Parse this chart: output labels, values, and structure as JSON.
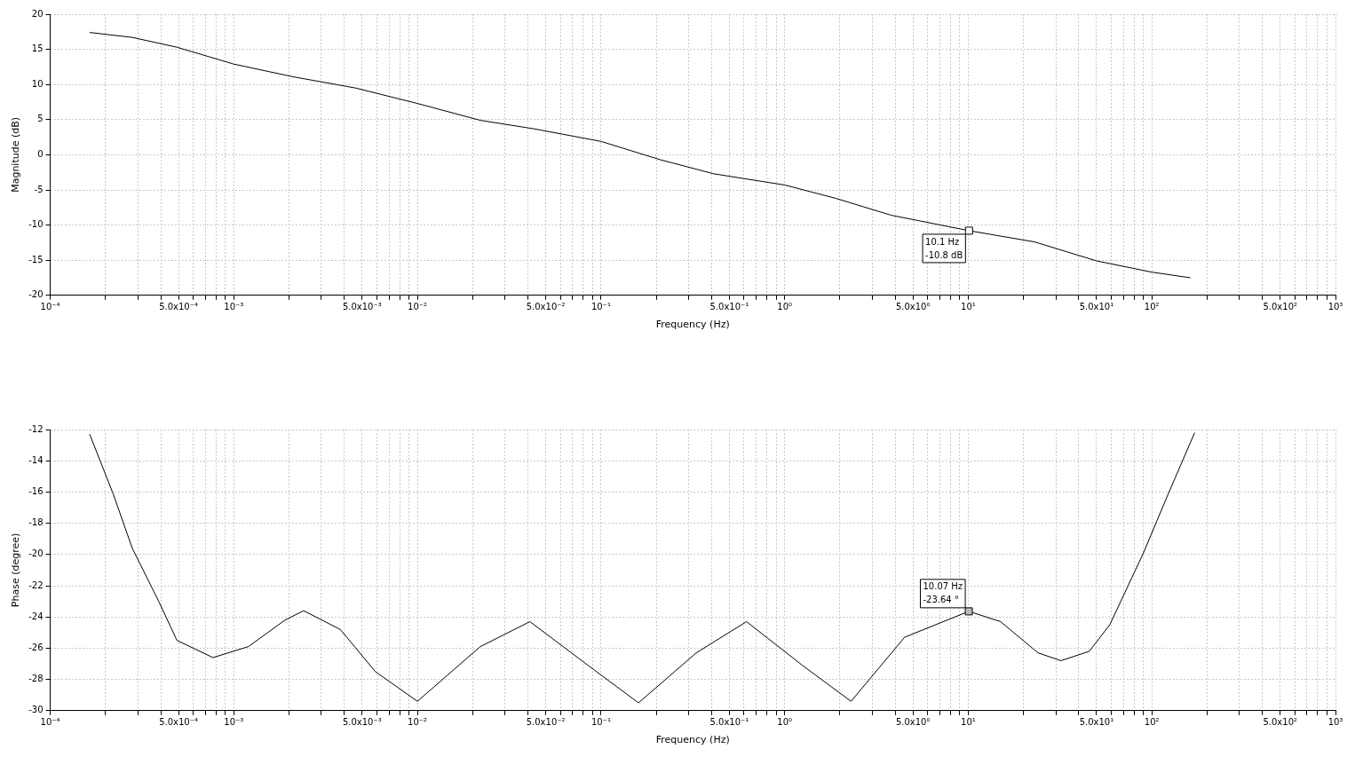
{
  "chart_data": [
    {
      "type": "line",
      "xlabel": "Frequency (Hz)",
      "ylabel": "Magnitude (dB)",
      "log": "x",
      "grid": true,
      "xlim": [
        0.0001,
        1000
      ],
      "ylim": [
        -20,
        20
      ],
      "yticks": [
        -20,
        -15,
        -10,
        -5,
        0,
        5,
        10,
        15,
        20
      ],
      "xticks": [
        {
          "value": 0.0001,
          "label": "10⁻⁴"
        },
        {
          "value": 0.0002,
          "label": null
        },
        {
          "value": 0.0003,
          "label": null
        },
        {
          "value": 0.0004,
          "label": null
        },
        {
          "value": 0.0005,
          "label": "5.0x10⁻⁴"
        },
        {
          "value": 0.0006,
          "label": null
        },
        {
          "value": 0.0007,
          "label": null
        },
        {
          "value": 0.0008,
          "label": null
        },
        {
          "value": 0.0009,
          "label": null
        },
        {
          "value": 0.001,
          "label": "10⁻³"
        },
        {
          "value": 0.002,
          "label": null
        },
        {
          "value": 0.003,
          "label": null
        },
        {
          "value": 0.004,
          "label": null
        },
        {
          "value": 0.005,
          "label": "5.0x10⁻³"
        },
        {
          "value": 0.006,
          "label": null
        },
        {
          "value": 0.007,
          "label": null
        },
        {
          "value": 0.008,
          "label": null
        },
        {
          "value": 0.009,
          "label": null
        },
        {
          "value": 0.01,
          "label": "10⁻²"
        },
        {
          "value": 0.02,
          "label": null
        },
        {
          "value": 0.03,
          "label": null
        },
        {
          "value": 0.04,
          "label": null
        },
        {
          "value": 0.05,
          "label": "5.0x10⁻²"
        },
        {
          "value": 0.06,
          "label": null
        },
        {
          "value": 0.07,
          "label": null
        },
        {
          "value": 0.08,
          "label": null
        },
        {
          "value": 0.09,
          "label": null
        },
        {
          "value": 0.1,
          "label": "10⁻¹"
        },
        {
          "value": 0.2,
          "label": null
        },
        {
          "value": 0.3,
          "label": null
        },
        {
          "value": 0.4,
          "label": null
        },
        {
          "value": 0.5,
          "label": "5.0x10⁻¹"
        },
        {
          "value": 0.6,
          "label": null
        },
        {
          "value": 0.7,
          "label": null
        },
        {
          "value": 0.8,
          "label": null
        },
        {
          "value": 0.9,
          "label": null
        },
        {
          "value": 1,
          "label": "10⁰"
        },
        {
          "value": 2,
          "label": null
        },
        {
          "value": 3,
          "label": null
        },
        {
          "value": 4,
          "label": null
        },
        {
          "value": 5,
          "label": "5.0x10⁰"
        },
        {
          "value": 6,
          "label": null
        },
        {
          "value": 7,
          "label": null
        },
        {
          "value": 8,
          "label": null
        },
        {
          "value": 9,
          "label": null
        },
        {
          "value": 10,
          "label": "10¹"
        },
        {
          "value": 20,
          "label": null
        },
        {
          "value": 30,
          "label": null
        },
        {
          "value": 40,
          "label": null
        },
        {
          "value": 50,
          "label": "5.0x10¹"
        },
        {
          "value": 60,
          "label": null
        },
        {
          "value": 70,
          "label": null
        },
        {
          "value": 80,
          "label": null
        },
        {
          "value": 90,
          "label": null
        },
        {
          "value": 100,
          "label": "10²"
        },
        {
          "value": 200,
          "label": null
        },
        {
          "value": 300,
          "label": null
        },
        {
          "value": 400,
          "label": null
        },
        {
          "value": 500,
          "label": "5.0x10²"
        },
        {
          "value": 600,
          "label": null
        },
        {
          "value": 700,
          "label": null
        },
        {
          "value": 800,
          "label": null
        },
        {
          "value": 900,
          "label": null
        },
        {
          "value": 1000,
          "label": "10³"
        }
      ],
      "series": [
        {
          "color": "#000000",
          "x": [
            0.000164,
            0.00028,
            0.00049,
            0.001,
            0.0021,
            0.0046,
            0.01,
            0.022,
            0.043,
            0.1,
            0.21,
            0.41,
            1,
            1.9,
            3.8,
            10.1,
            23,
            50,
            100,
            162
          ],
          "values": [
            17.4,
            16.7,
            15.3,
            12.9,
            11.1,
            9.5,
            7.3,
            4.9,
            3.7,
            1.9,
            -0.7,
            -2.7,
            -4.3,
            -6.2,
            -8.6,
            -10.8,
            -12.4,
            -15.1,
            -16.7,
            -17.5
          ]
        }
      ],
      "annotations": [
        {
          "text": "10.1 Hz\n-10.8 dB",
          "x": 10.1,
          "y": -10.8
        }
      ]
    },
    {
      "type": "line",
      "xlabel": "Frequency (Hz)",
      "ylabel": "Phase (degree)",
      "log": "x",
      "grid": true,
      "xlim": [
        0.0001,
        1000
      ],
      "ylim": [
        -30,
        -12
      ],
      "yticks": [
        -30,
        -28,
        -26,
        -24,
        -22,
        -20,
        -18,
        -16,
        -14,
        -12
      ],
      "xticks": [
        {
          "value": 0.0001,
          "label": "10⁻⁴"
        },
        {
          "value": 0.0002,
          "label": null
        },
        {
          "value": 0.0003,
          "label": null
        },
        {
          "value": 0.0004,
          "label": null
        },
        {
          "value": 0.0005,
          "label": "5.0x10⁻⁴"
        },
        {
          "value": 0.0006,
          "label": null
        },
        {
          "value": 0.0007,
          "label": null
        },
        {
          "value": 0.0008,
          "label": null
        },
        {
          "value": 0.0009,
          "label": null
        },
        {
          "value": 0.001,
          "label": "10⁻³"
        },
        {
          "value": 0.002,
          "label": null
        },
        {
          "value": 0.003,
          "label": null
        },
        {
          "value": 0.004,
          "label": null
        },
        {
          "value": 0.005,
          "label": "5.0x10⁻³"
        },
        {
          "value": 0.006,
          "label": null
        },
        {
          "value": 0.007,
          "label": null
        },
        {
          "value": 0.008,
          "label": null
        },
        {
          "value": 0.009,
          "label": null
        },
        {
          "value": 0.01,
          "label": "10⁻²"
        },
        {
          "value": 0.02,
          "label": null
        },
        {
          "value": 0.03,
          "label": null
        },
        {
          "value": 0.04,
          "label": null
        },
        {
          "value": 0.05,
          "label": "5.0x10⁻²"
        },
        {
          "value": 0.06,
          "label": null
        },
        {
          "value": 0.07,
          "label": null
        },
        {
          "value": 0.08,
          "label": null
        },
        {
          "value": 0.09,
          "label": null
        },
        {
          "value": 0.1,
          "label": "10⁻¹"
        },
        {
          "value": 0.2,
          "label": null
        },
        {
          "value": 0.3,
          "label": null
        },
        {
          "value": 0.4,
          "label": null
        },
        {
          "value": 0.5,
          "label": "5.0x10⁻¹"
        },
        {
          "value": 0.6,
          "label": null
        },
        {
          "value": 0.7,
          "label": null
        },
        {
          "value": 0.8,
          "label": null
        },
        {
          "value": 0.9,
          "label": null
        },
        {
          "value": 1,
          "label": "10⁰"
        },
        {
          "value": 2,
          "label": null
        },
        {
          "value": 3,
          "label": null
        },
        {
          "value": 4,
          "label": null
        },
        {
          "value": 5,
          "label": "5.0x10⁰"
        },
        {
          "value": 6,
          "label": null
        },
        {
          "value": 7,
          "label": null
        },
        {
          "value": 8,
          "label": null
        },
        {
          "value": 9,
          "label": null
        },
        {
          "value": 10,
          "label": "10¹"
        },
        {
          "value": 20,
          "label": null
        },
        {
          "value": 30,
          "label": null
        },
        {
          "value": 40,
          "label": null
        },
        {
          "value": 50,
          "label": "5.0x10¹"
        },
        {
          "value": 60,
          "label": null
        },
        {
          "value": 70,
          "label": null
        },
        {
          "value": 80,
          "label": null
        },
        {
          "value": 90,
          "label": null
        },
        {
          "value": 100,
          "label": "10²"
        },
        {
          "value": 200,
          "label": null
        },
        {
          "value": 300,
          "label": null
        },
        {
          "value": 400,
          "label": null
        },
        {
          "value": 500,
          "label": "5.0x10²"
        },
        {
          "value": 600,
          "label": null
        },
        {
          "value": 700,
          "label": null
        },
        {
          "value": 800,
          "label": null
        },
        {
          "value": 900,
          "label": null
        },
        {
          "value": 1000,
          "label": "10³"
        }
      ],
      "series": [
        {
          "color": "#000000",
          "x": [
            0.000164,
            0.00022,
            0.00028,
            0.00039,
            0.00049,
            0.00077,
            0.0012,
            0.0019,
            0.0024,
            0.0038,
            0.0059,
            0.01,
            0.022,
            0.041,
            0.085,
            0.16,
            0.33,
            0.62,
            1.25,
            2.3,
            4.5,
            10.07,
            15,
            24,
            32,
            45.6,
            59,
            90,
            123,
            171
          ],
          "values": [
            -12.3,
            -16.1,
            -19.6,
            -23.0,
            -25.5,
            -26.6,
            -25.9,
            -24.2,
            -23.6,
            -24.8,
            -27.5,
            -29.4,
            -25.9,
            -24.3,
            -27.1,
            -29.5,
            -26.3,
            -24.3,
            -27.1,
            -29.4,
            -25.3,
            -23.64,
            -24.3,
            -26.3,
            -26.8,
            -26.2,
            -24.5,
            -19.9,
            -16.1,
            -12.2
          ]
        }
      ],
      "annotations": [
        {
          "text": "10.07 Hz\n-23.64 °",
          "x": 10.07,
          "y": -23.64
        }
      ]
    }
  ]
}
